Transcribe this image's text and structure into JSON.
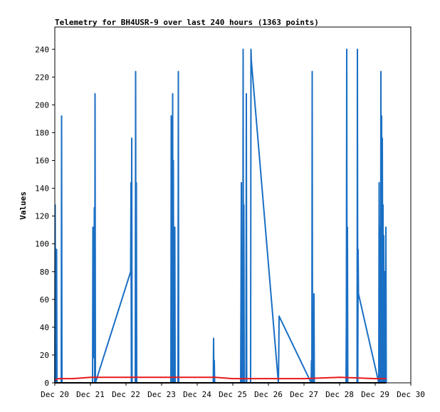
{
  "chart_data": {
    "type": "line",
    "title": "Telemetry for BH4USR-9 over last 240 hours (1363 points)",
    "ylabel": "Values",
    "xlabel": "",
    "xlim": [
      0,
      10
    ],
    "ylim": [
      0,
      256
    ],
    "x_unit_note": "days",
    "x_ticks": [
      {
        "x": 0,
        "label": "Dec 20"
      },
      {
        "x": 1,
        "label": "Dec 21"
      },
      {
        "x": 2,
        "label": "Dec 22"
      },
      {
        "x": 3,
        "label": "Dec 23"
      },
      {
        "x": 4,
        "label": "Dec 24"
      },
      {
        "x": 5,
        "label": "Dec 25"
      },
      {
        "x": 6,
        "label": "Dec 26"
      },
      {
        "x": 7,
        "label": "Dec 27"
      },
      {
        "x": 8,
        "label": "Dec 28"
      },
      {
        "x": 9,
        "label": "Dec 29"
      },
      {
        "x": 10,
        "label": "Dec 30"
      }
    ],
    "y_ticks": [
      0,
      20,
      40,
      60,
      80,
      100,
      120,
      140,
      160,
      180,
      200,
      220,
      240
    ],
    "grid": false,
    "legend": "none",
    "colors": {
      "series1": "#1a6fc4",
      "series2": "#e8191c",
      "series3": "#000000"
    },
    "series": [
      {
        "color": "#1a6fc4",
        "points": [
          [
            0.0,
            0
          ],
          [
            0.01,
            128
          ],
          [
            0.02,
            0
          ],
          [
            0.03,
            96
          ],
          [
            0.04,
            0
          ],
          [
            0.05,
            96
          ],
          [
            0.06,
            0
          ],
          [
            0.18,
            0
          ],
          [
            0.19,
            192
          ],
          [
            0.2,
            0
          ],
          [
            1.06,
            0
          ],
          [
            1.07,
            112
          ],
          [
            1.08,
            18
          ],
          [
            1.09,
            90
          ],
          [
            1.1,
            55
          ],
          [
            1.11,
            126
          ],
          [
            1.12,
            0
          ],
          [
            1.13,
            208
          ],
          [
            1.14,
            0
          ],
          [
            2.13,
            80
          ],
          [
            2.14,
            144
          ],
          [
            2.15,
            0
          ],
          [
            2.16,
            176
          ],
          [
            2.17,
            0
          ],
          [
            2.26,
            0
          ],
          [
            2.27,
            224
          ],
          [
            2.28,
            0
          ],
          [
            2.29,
            144
          ],
          [
            2.3,
            0
          ],
          [
            3.26,
            0
          ],
          [
            3.27,
            192
          ],
          [
            3.28,
            0
          ],
          [
            3.29,
            96
          ],
          [
            3.3,
            0
          ],
          [
            3.31,
            208
          ],
          [
            3.32,
            0
          ],
          [
            3.33,
            160
          ],
          [
            3.34,
            0
          ],
          [
            3.35,
            8
          ],
          [
            3.36,
            0
          ],
          [
            3.37,
            112
          ],
          [
            3.38,
            0
          ],
          [
            3.46,
            0
          ],
          [
            3.47,
            224
          ],
          [
            3.48,
            0
          ],
          [
            4.45,
            0
          ],
          [
            4.46,
            32
          ],
          [
            4.47,
            0
          ],
          [
            4.48,
            16
          ],
          [
            4.49,
            0
          ],
          [
            5.22,
            0
          ],
          [
            5.23,
            64
          ],
          [
            5.24,
            144
          ],
          [
            5.25,
            0
          ],
          [
            5.28,
            0
          ],
          [
            5.29,
            240
          ],
          [
            5.3,
            0
          ],
          [
            5.31,
            128
          ],
          [
            5.32,
            0
          ],
          [
            5.37,
            0
          ],
          [
            5.38,
            208
          ],
          [
            5.39,
            0
          ],
          [
            5.5,
            0
          ],
          [
            5.51,
            240
          ],
          [
            5.52,
            232
          ],
          [
            6.28,
            0
          ],
          [
            6.29,
            18
          ],
          [
            6.3,
            48
          ],
          [
            7.2,
            0
          ],
          [
            7.21,
            16
          ],
          [
            7.22,
            0
          ],
          [
            7.23,
            224
          ],
          [
            7.24,
            0
          ],
          [
            7.27,
            0
          ],
          [
            7.28,
            64
          ],
          [
            7.29,
            0
          ],
          [
            8.18,
            0
          ],
          [
            8.19,
            48
          ],
          [
            8.2,
            240
          ],
          [
            8.21,
            0
          ],
          [
            8.22,
            112
          ],
          [
            8.23,
            0
          ],
          [
            8.49,
            0
          ],
          [
            8.5,
            240
          ],
          [
            8.51,
            0
          ],
          [
            8.52,
            96
          ],
          [
            8.53,
            64
          ],
          [
            9.1,
            0
          ],
          [
            9.11,
            144
          ],
          [
            9.12,
            0
          ],
          [
            9.13,
            112
          ],
          [
            9.14,
            12
          ],
          [
            9.15,
            0
          ],
          [
            9.16,
            224
          ],
          [
            9.17,
            0
          ],
          [
            9.18,
            192
          ],
          [
            9.19,
            0
          ],
          [
            9.2,
            176
          ],
          [
            9.21,
            64
          ],
          [
            9.22,
            128
          ],
          [
            9.23,
            0
          ],
          [
            9.24,
            106
          ],
          [
            9.25,
            0
          ],
          [
            9.26,
            80
          ],
          [
            9.27,
            0
          ],
          [
            9.28,
            8
          ],
          [
            9.29,
            0
          ],
          [
            9.3,
            112
          ],
          [
            9.31,
            0
          ]
        ]
      },
      {
        "color": "#e8191c",
        "points": [
          [
            0.0,
            2
          ],
          [
            0.1,
            3
          ],
          [
            0.5,
            3
          ],
          [
            1.0,
            4
          ],
          [
            2.0,
            4
          ],
          [
            3.0,
            4
          ],
          [
            4.0,
            4
          ],
          [
            4.5,
            4
          ],
          [
            5.0,
            3
          ],
          [
            6.0,
            3
          ],
          [
            6.5,
            3
          ],
          [
            7.0,
            3
          ],
          [
            8.0,
            4
          ],
          [
            9.0,
            3
          ],
          [
            9.31,
            3
          ]
        ]
      },
      {
        "color": "#000000",
        "points": [
          [
            0.0,
            0
          ],
          [
            9.31,
            0
          ]
        ]
      }
    ]
  }
}
